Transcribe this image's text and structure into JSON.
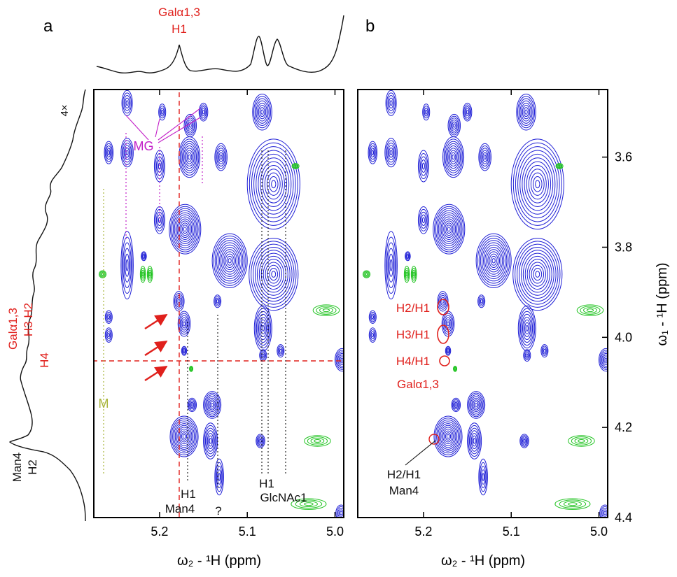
{
  "figure": {
    "panel_a_letter": "a",
    "panel_b_letter": "b",
    "x_axis_label": "ω₂ - ¹H  (ppm)",
    "y_axis_label": "ω₁ - ¹H  (ppm)",
    "scale_note": "4×"
  },
  "colors": {
    "positive_contour": "#1f1fd6",
    "negative_contour": "#22c422",
    "annotation_red": "#e0201c",
    "annotation_magenta": "#c21ec8",
    "annotation_olive": "#a8b43a",
    "trace": "#111111"
  },
  "chart_data": [
    {
      "panel": "a",
      "type": "heatmap",
      "subtype": "2D NMR contour spectrum",
      "xlim": [
        5.275,
        4.99
      ],
      "ylim": [
        4.4,
        3.45
      ],
      "x_ticks": [
        5.2,
        5.1,
        5.0
      ],
      "x_tick_labels": [
        "5.2",
        "5.1",
        "5.0"
      ],
      "y_ticks": [
        3.6,
        3.8,
        4.0,
        4.2,
        4.4
      ],
      "y_tick_labels": [
        "3.6",
        "3.8",
        "4.0",
        "4.2",
        "4.4"
      ],
      "xlabel": "ω₂ - ¹H  (ppm)",
      "ylabel": "",
      "peaks": [
        {
          "x": 5.237,
          "y": 3.48,
          "rx": 0.006,
          "ry": 0.028
        },
        {
          "x": 5.197,
          "y": 3.5,
          "rx": 0.004,
          "ry": 0.018
        },
        {
          "x": 5.15,
          "y": 3.5,
          "rx": 0.005,
          "ry": 0.02
        },
        {
          "x": 5.165,
          "y": 3.53,
          "rx": 0.007,
          "ry": 0.025
        },
        {
          "x": 5.258,
          "y": 3.59,
          "rx": 0.005,
          "ry": 0.025
        },
        {
          "x": 5.237,
          "y": 3.59,
          "rx": 0.007,
          "ry": 0.032
        },
        {
          "x": 5.2,
          "y": 3.62,
          "rx": 0.006,
          "ry": 0.035
        },
        {
          "x": 5.166,
          "y": 3.6,
          "rx": 0.012,
          "ry": 0.045
        },
        {
          "x": 5.13,
          "y": 3.6,
          "rx": 0.007,
          "ry": 0.03
        },
        {
          "x": 5.083,
          "y": 3.5,
          "rx": 0.011,
          "ry": 0.04
        },
        {
          "x": 5.07,
          "y": 3.66,
          "rx": 0.03,
          "ry": 0.1
        },
        {
          "x": 5.2,
          "y": 3.74,
          "rx": 0.006,
          "ry": 0.03
        },
        {
          "x": 5.171,
          "y": 3.76,
          "rx": 0.018,
          "ry": 0.055
        },
        {
          "x": 5.12,
          "y": 3.83,
          "rx": 0.02,
          "ry": 0.06
        },
        {
          "x": 5.07,
          "y": 3.86,
          "rx": 0.028,
          "ry": 0.08
        },
        {
          "x": 5.237,
          "y": 3.84,
          "rx": 0.007,
          "ry": 0.075
        },
        {
          "x": 5.218,
          "y": 3.82,
          "rx": 0.003,
          "ry": 0.01
        },
        {
          "x": 5.178,
          "y": 3.92,
          "rx": 0.006,
          "ry": 0.022
        },
        {
          "x": 5.172,
          "y": 3.97,
          "rx": 0.007,
          "ry": 0.028
        },
        {
          "x": 5.134,
          "y": 3.92,
          "rx": 0.004,
          "ry": 0.014
        },
        {
          "x": 5.258,
          "y": 3.955,
          "rx": 0.004,
          "ry": 0.014
        },
        {
          "x": 5.258,
          "y": 3.995,
          "rx": 0.004,
          "ry": 0.016
        },
        {
          "x": 5.172,
          "y": 4.03,
          "rx": 0.003,
          "ry": 0.01
        },
        {
          "x": 5.082,
          "y": 3.98,
          "rx": 0.01,
          "ry": 0.05
        },
        {
          "x": 5.062,
          "y": 4.03,
          "rx": 0.004,
          "ry": 0.014
        },
        {
          "x": 5.082,
          "y": 4.04,
          "rx": 0.004,
          "ry": 0.013
        },
        {
          "x": 4.992,
          "y": 4.05,
          "rx": 0.008,
          "ry": 0.025
        },
        {
          "x": 5.14,
          "y": 4.15,
          "rx": 0.01,
          "ry": 0.03
        },
        {
          "x": 5.172,
          "y": 4.22,
          "rx": 0.016,
          "ry": 0.045
        },
        {
          "x": 5.142,
          "y": 4.23,
          "rx": 0.008,
          "ry": 0.04
        },
        {
          "x": 5.163,
          "y": 4.15,
          "rx": 0.005,
          "ry": 0.015
        },
        {
          "x": 5.085,
          "y": 4.23,
          "rx": 0.005,
          "ry": 0.015
        },
        {
          "x": 5.132,
          "y": 4.31,
          "rx": 0.005,
          "ry": 0.04
        },
        {
          "x": 4.993,
          "y": 4.39,
          "rx": 0.006,
          "ry": 0.018
        }
      ],
      "negative_peaks": [
        {
          "x": 5.219,
          "y": 3.86,
          "rx": 0.003,
          "ry": 0.018
        },
        {
          "x": 5.211,
          "y": 3.86,
          "rx": 0.003,
          "ry": 0.018
        },
        {
          "x": 5.265,
          "y": 3.86,
          "rx": 0.004,
          "ry": 0.008
        },
        {
          "x": 5.01,
          "y": 3.94,
          "rx": 0.015,
          "ry": 0.012
        },
        {
          "x": 5.045,
          "y": 3.62,
          "rx": 0.004,
          "ry": 0.006
        },
        {
          "x": 5.02,
          "y": 4.23,
          "rx": 0.015,
          "ry": 0.012
        },
        {
          "x": 5.03,
          "y": 4.37,
          "rx": 0.02,
          "ry": 0.012
        },
        {
          "x": 5.164,
          "y": 4.07,
          "rx": 0.002,
          "ry": 0.006
        }
      ],
      "labels": [
        {
          "text": "MG",
          "color": "magenta"
        },
        {
          "text": "M",
          "color": "olive"
        },
        {
          "text": "H1",
          "color": "black"
        },
        {
          "text": "Man4",
          "color": "black"
        },
        {
          "text": "?",
          "color": "black"
        },
        {
          "text": "H1",
          "color": "black"
        },
        {
          "text": "GlcNAc1",
          "color": "black"
        },
        {
          "text": "Galα1,3",
          "color": "red"
        },
        {
          "text": "H1",
          "color": "red"
        },
        {
          "text": "Galα1,3",
          "color": "red"
        },
        {
          "text": "H3 H2",
          "color": "red"
        },
        {
          "text": "H4",
          "color": "red"
        },
        {
          "text": "Man4",
          "color": "black"
        },
        {
          "text": "H2",
          "color": "black"
        }
      ]
    },
    {
      "panel": "b",
      "type": "heatmap",
      "subtype": "2D NMR contour spectrum",
      "xlim": [
        5.275,
        4.99
      ],
      "ylim": [
        4.4,
        3.45
      ],
      "x_ticks": [
        5.2,
        5.1,
        5.0
      ],
      "x_tick_labels": [
        "5.2",
        "5.1",
        "5.0"
      ],
      "y_ticks": [
        3.6,
        3.8,
        4.0,
        4.2,
        4.4
      ],
      "y_tick_labels": [
        "3.6",
        "3.8",
        "4.0",
        "4.2",
        "4.4"
      ],
      "xlabel": "ω₂ - ¹H  (ppm)",
      "ylabel": "ω₁ - ¹H  (ppm)",
      "labels": [
        {
          "text": "H2/H1",
          "color": "red"
        },
        {
          "text": "H3/H1",
          "color": "red"
        },
        {
          "text": "H4/H1",
          "color": "red"
        },
        {
          "text": "Galα1,3",
          "color": "red"
        },
        {
          "text": "H2/H1",
          "color": "black"
        },
        {
          "text": "Man4",
          "color": "black"
        }
      ]
    }
  ]
}
